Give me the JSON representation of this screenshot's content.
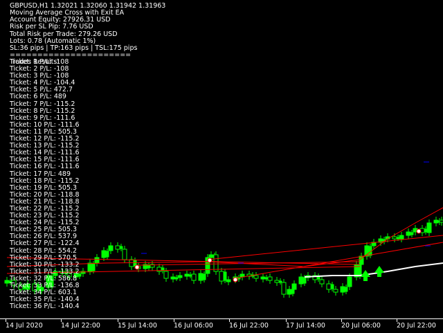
{
  "symbol_header": "GBPUSD,H1  1.32021 1.32060 1.31942 1.31963",
  "ea_info": [
    "Moving Average Cross with Exit EA",
    "Account Equity: 27926.31 USD",
    "Risk per SL Pip: 7.76 USD",
    "Total Risk per Trade: 279.26 USD",
    "Lots: 0.78 (Automatic 1%)",
    "SL:36 pips | TP:163 pips | TSL:175 pips",
    "======================",
    "Trades Results:"
  ],
  "trades": [
    "Ticket: 1 P/L: -108",
    "Ticket: 2 P/L: -108",
    "Ticket: 3 P/L: -108",
    "Ticket: 4 P/L: -104.4",
    "Ticket: 5 P/L: 472.7",
    "Ticket: 6 P/L: 489",
    "Ticket: 7 P/L: -115.2",
    "Ticket: 8 P/L: -115.2",
    "Ticket: 9 P/L: -111.6",
    "Ticket: 10 P/L: -111.6",
    "Ticket: 11 P/L: 505.3",
    "Ticket: 12 P/L: -115.2",
    "Ticket: 13 P/L: -115.2",
    "Ticket: 14 P/L: -111.6",
    "Ticket: 15 P/L: -111.6",
    "Ticket: 16 P/L: -111.6",
    "Ticket: 17 P/L: 489",
    "Ticket: 18 P/L: -115.2",
    "Ticket: 19 P/L: 505.3",
    "Ticket: 20 P/L: -118.8",
    "Ticket: 21 P/L: -118.8",
    "Ticket: 22 P/L: -115.2",
    "Ticket: 23 P/L: -115.2",
    "Ticket: 24 P/L: -115.2",
    "Ticket: 25 P/L: 505.3",
    "Ticket: 26 P/L: 537.9",
    "Ticket: 27 P/L: -122.4",
    "Ticket: 28 P/L: 554.2",
    "Ticket: 29 P/L: 570.5",
    "Ticket: 30 P/L: -133.2",
    "Ticket: 31 P/L: -133.2",
    "Ticket: 32 P/L: 586.8",
    "Ticket: 33 P/L: -136.8",
    "Ticket: 34 P/L: 603.1",
    "Ticket: 35 P/L: -140.4",
    "Ticket: 36 P/L: -140.4"
  ],
  "time_axis": [
    "14 Jul 2020",
    "14 Jul 22:00",
    "15 Jul 14:00",
    "16 Jul 06:00",
    "16 Jul 22:00",
    "17 Jul 14:00",
    "20 Jul 06:00",
    "20 Jul 22:00"
  ],
  "colors": {
    "background": "#000000",
    "bull_candle": "#00ff00",
    "bear_candle": "#000000",
    "ma_fast": "#ffffff",
    "ma_slow": "#ff0000",
    "trade_line": "#ff0000",
    "buy_arrow": "#00ff00",
    "pending_marker": "#0000ff",
    "text": "#ffffff"
  }
}
